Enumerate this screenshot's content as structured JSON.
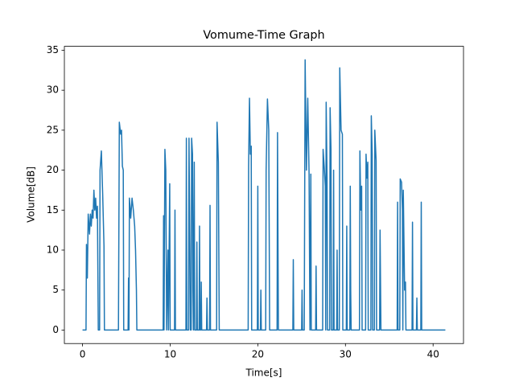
{
  "chart_data": {
    "type": "line",
    "title": "Vomume-Time Graph",
    "x_label": "Time[s]",
    "y_label": "Volume[dB]",
    "x": [
      0,
      0.4,
      0.45,
      0.55,
      0.65,
      0.8,
      0.9,
      1.0,
      1.1,
      1.2,
      1.3,
      1.4,
      1.5,
      1.6,
      1.7,
      1.8,
      1.95,
      2.0,
      2.15,
      2.3,
      2.45,
      2.5,
      4.1,
      4.2,
      4.35,
      4.45,
      4.55,
      4.65,
      4.7,
      5.2,
      5.25,
      5.3,
      5.35,
      5.5,
      5.65,
      5.8,
      5.95,
      6.05,
      6.15,
      6.2,
      9.2,
      9.25,
      9.3,
      9.4,
      9.5,
      9.6,
      9.75,
      9.8,
      9.95,
      10.0,
      10.5,
      10.55,
      10.6,
      11.8,
      11.85,
      11.9,
      12.1,
      12.15,
      12.25,
      12.3,
      12.4,
      12.45,
      12.55,
      12.6,
      12.65,
      12.75,
      12.8,
      13.0,
      13.05,
      13.1,
      13.3,
      13.35,
      13.4,
      13.5,
      13.55,
      13.6,
      14.15,
      14.2,
      14.25,
      14.5,
      14.55,
      14.6,
      15.3,
      15.35,
      15.5,
      15.6,
      18.9,
      18.95,
      19.05,
      19.15,
      19.25,
      19.3,
      19.95,
      20.0,
      20.05,
      20.3,
      20.35,
      20.4,
      20.9,
      20.95,
      21.1,
      21.25,
      21.35,
      22.2,
      22.25,
      22.35,
      24.0,
      24.05,
      24.1,
      25.0,
      25.05,
      25.1,
      25.3,
      25.4,
      25.55,
      25.7,
      25.85,
      25.95,
      26.05,
      26.1,
      26.6,
      26.65,
      26.7,
      27.4,
      27.45,
      27.6,
      27.7,
      27.75,
      27.8,
      27.9,
      27.95,
      28.2,
      28.25,
      28.35,
      28.4,
      28.6,
      28.65,
      28.7,
      29.0,
      29.05,
      29.1,
      29.3,
      29.35,
      29.5,
      29.65,
      29.7,
      30.1,
      30.15,
      30.2,
      30.5,
      30.55,
      30.6,
      30.65,
      31.6,
      31.65,
      31.75,
      31.85,
      31.9,
      32.3,
      32.35,
      32.45,
      32.55,
      32.6,
      32.9,
      32.95,
      33.05,
      33.1,
      33.3,
      33.35,
      33.5,
      33.55,
      33.9,
      33.95,
      34.05,
      35.9,
      35.95,
      36.0,
      36.2,
      36.25,
      36.4,
      36.5,
      36.55,
      36.6,
      36.75,
      36.85,
      36.9,
      37.6,
      37.65,
      37.7,
      38.1,
      38.15,
      38.2,
      38.6,
      38.65,
      38.7,
      41.4
    ],
    "series": [
      {
        "color": "#1f77b4",
        "values": [
          0,
          0,
          10.7,
          6.5,
          14.5,
          12,
          14.5,
          13,
          15,
          14,
          17.5,
          15,
          16.5,
          14,
          15.5,
          0,
          0,
          20,
          22.4,
          17,
          10.5,
          0,
          0,
          26,
          24.5,
          25,
          20.5,
          20,
          0,
          0,
          6.5,
          0,
          16.5,
          14,
          16.5,
          15,
          13,
          10,
          5,
          0,
          0,
          14.3,
          0,
          22.6,
          20,
          0,
          10,
          0,
          18.3,
          0,
          0,
          15,
          0,
          0,
          24,
          0,
          0,
          24,
          10,
          0,
          0,
          24,
          22,
          5,
          0,
          21,
          0,
          0,
          11,
          0,
          0,
          13,
          0,
          0,
          6,
          0,
          0,
          4,
          0,
          0,
          15.6,
          0,
          0,
          26,
          21,
          0,
          0,
          20.5,
          29,
          22,
          23,
          0,
          0,
          18,
          0,
          0,
          5,
          0,
          0,
          20,
          28.9,
          25,
          0,
          0,
          24.7,
          0,
          0,
          8.8,
          0,
          0,
          5,
          0,
          0,
          33.8,
          20,
          29,
          19.5,
          0,
          19.5,
          0,
          0,
          8,
          0,
          0,
          22.6,
          20,
          18,
          0,
          28.5,
          19,
          0,
          0,
          27.8,
          22.6,
          0,
          0,
          20,
          0,
          0,
          10,
          0,
          0,
          32.8,
          25,
          24.5,
          0,
          0,
          13,
          0,
          0,
          18,
          5,
          0,
          0,
          22.4,
          15,
          18,
          0,
          0,
          22,
          19,
          21,
          0,
          0,
          26.8,
          22,
          0,
          0,
          25,
          21.2,
          0,
          0,
          12.5,
          0,
          0,
          16,
          0,
          0,
          18.9,
          18.5,
          15,
          0,
          17.5,
          5,
          6,
          0,
          0,
          13.5,
          0,
          0,
          4,
          0,
          0,
          16,
          0,
          0
        ]
      }
    ],
    "xlim": [
      -2.07,
      43.47
    ],
    "xticks": [
      0,
      10,
      20,
      30,
      40
    ],
    "ylim": [
      -1.69,
      35.49
    ],
    "yticks": [
      0,
      5,
      10,
      15,
      20,
      25,
      30,
      35
    ],
    "grid": false
  }
}
